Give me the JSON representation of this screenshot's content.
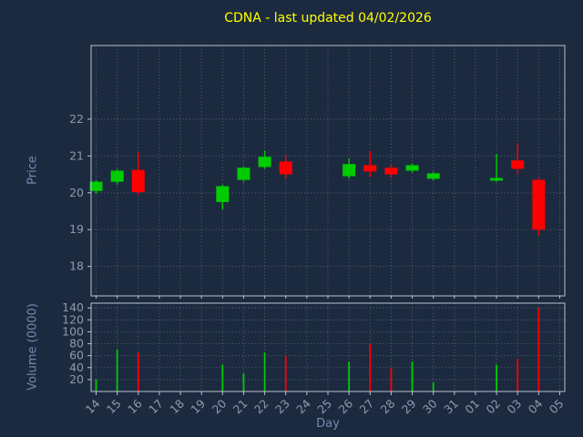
{
  "colors": {
    "background": "#1c2a40",
    "up": "#00cc00",
    "down": "#ff0000",
    "title": "#ffff00",
    "axis_label": "#7489ad",
    "tick_label": "#8d99ad",
    "grid": "#5c6a7d",
    "spine": "#b9c2cf"
  },
  "chart_data": {
    "type": "candlestick",
    "title": "CDNA - last updated 04/02/2026",
    "xlabel": "Day",
    "ylabel": "Price",
    "ylabel2": "Volume (0000)",
    "grid": "dotted",
    "legend": "none",
    "x_ticks": [
      "14",
      "15",
      "16",
      "17",
      "18",
      "19",
      "20",
      "21",
      "22",
      "23",
      "24",
      "25",
      "26",
      "27",
      "28",
      "29",
      "30",
      "31",
      "01",
      "02",
      "03",
      "04",
      "05"
    ],
    "price_ticks": [
      18,
      19,
      20,
      21,
      22
    ],
    "price_range": [
      17.2,
      24.0
    ],
    "volume_ticks": [
      20,
      40,
      60,
      80,
      100,
      120,
      140
    ],
    "volume_range": [
      0,
      148
    ],
    "candles": [
      {
        "day": "14",
        "open": 20.05,
        "high": 20.35,
        "low": 19.98,
        "close": 20.3,
        "volume": 20
      },
      {
        "day": "15",
        "open": 20.3,
        "high": 20.65,
        "low": 20.22,
        "close": 20.6,
        "volume": 70
      },
      {
        "day": "16",
        "open": 20.62,
        "high": 21.1,
        "low": 19.95,
        "close": 20.02,
        "volume": 65
      },
      {
        "day": "20",
        "open": 19.75,
        "high": 20.22,
        "low": 19.55,
        "close": 20.18,
        "volume": 45
      },
      {
        "day": "21",
        "open": 20.35,
        "high": 20.72,
        "low": 20.3,
        "close": 20.68,
        "volume": 30
      },
      {
        "day": "22",
        "open": 20.7,
        "high": 21.15,
        "low": 20.65,
        "close": 20.98,
        "volume": 65
      },
      {
        "day": "23",
        "open": 20.85,
        "high": 21.03,
        "low": 20.38,
        "close": 20.5,
        "volume": 60
      },
      {
        "day": "26",
        "open": 20.45,
        "high": 20.93,
        "low": 20.38,
        "close": 20.78,
        "volume": 50
      },
      {
        "day": "27",
        "open": 20.75,
        "high": 21.13,
        "low": 20.43,
        "close": 20.58,
        "volume": 80
      },
      {
        "day": "28",
        "open": 20.68,
        "high": 20.75,
        "low": 20.4,
        "close": 20.5,
        "volume": 40
      },
      {
        "day": "29",
        "open": 20.6,
        "high": 20.8,
        "low": 20.55,
        "close": 20.75,
        "volume": 50
      },
      {
        "day": "30",
        "open": 20.38,
        "high": 20.57,
        "low": 20.33,
        "close": 20.53,
        "volume": 15
      },
      {
        "day": "02",
        "open": 20.33,
        "high": 21.05,
        "low": 20.3,
        "close": 20.4,
        "volume": 45
      },
      {
        "day": "03",
        "open": 20.88,
        "high": 21.35,
        "low": 20.5,
        "close": 20.65,
        "volume": 55
      },
      {
        "day": "04",
        "open": 20.35,
        "high": 20.4,
        "low": 18.85,
        "close": 19.0,
        "volume": 140
      }
    ]
  }
}
